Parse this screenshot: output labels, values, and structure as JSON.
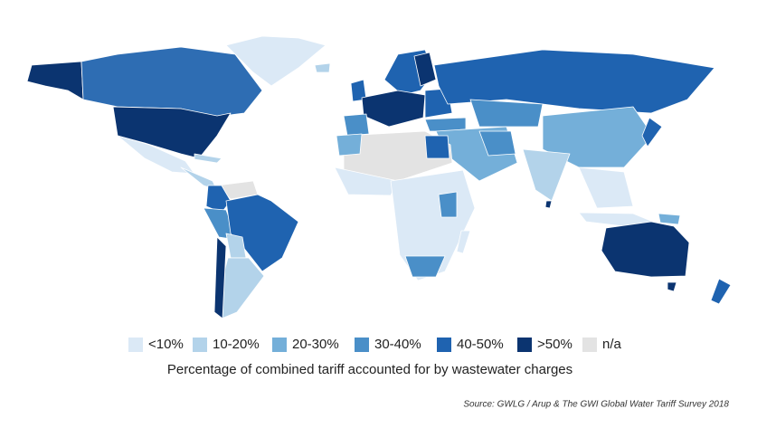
{
  "legend": {
    "items": [
      {
        "label": "<10%",
        "color": "#dbe9f6"
      },
      {
        "label": "10-20%",
        "color": "#b3d3ea"
      },
      {
        "label": "20-30%",
        "color": "#74afd9"
      },
      {
        "label": "30-40%",
        "color": "#4a8fc8"
      },
      {
        "label": "40-50%",
        "color": "#1f63b0"
      },
      {
        "label": ">50%",
        "color": "#0b3470"
      },
      {
        "label": "n/a",
        "color": "#e3e3e3"
      }
    ]
  },
  "caption": "Percentage of combined tariff accounted for by wastewater charges",
  "source": "Source: GWLG / Arup & The GWI Global Water Tariff Survey 2018"
}
